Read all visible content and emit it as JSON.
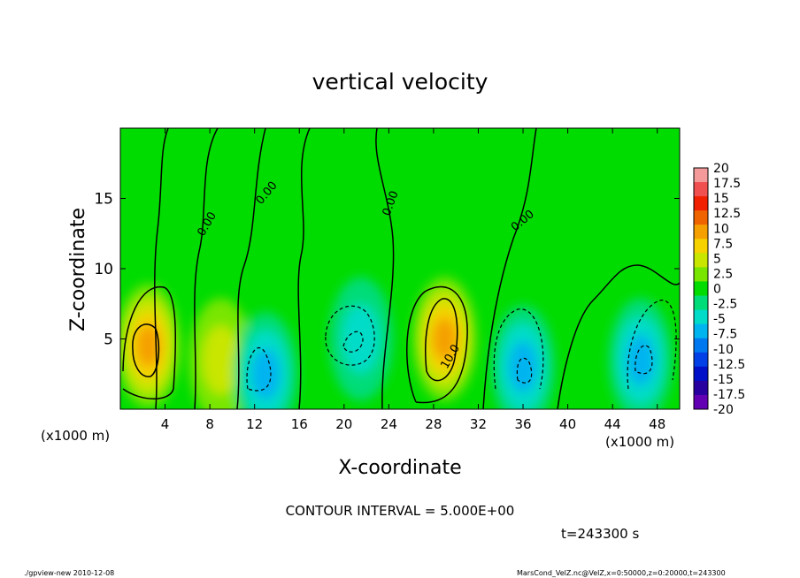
{
  "chart_data": {
    "type": "heatmap",
    "title": "vertical velocity",
    "xlabel": "X-coordinate",
    "ylabel": "Z-coordinate",
    "x_unit_left": "(x1000 m)",
    "x_unit_right": "(x1000 m)",
    "xlim": [
      0,
      50
    ],
    "ylim": [
      0,
      20
    ],
    "x_ticks": [
      "4",
      "8",
      "12",
      "16",
      "20",
      "24",
      "28",
      "32",
      "36",
      "40",
      "44",
      "48"
    ],
    "y_ticks": [
      "5",
      "10",
      "15"
    ],
    "colorbar_labels": [
      "20",
      "17.5",
      "15",
      "12.5",
      "10",
      "7.5",
      "5",
      "2.5",
      "0",
      "-2.5",
      "-5",
      "-7.5",
      "-10",
      "-12.5",
      "-15",
      "-17.5",
      "-20"
    ],
    "colorbar_colors": [
      "#f59a9a",
      "#f05050",
      "#f02000",
      "#f06400",
      "#f5a000",
      "#f5d200",
      "#c8e600",
      "#78e600",
      "#00dc00",
      "#00dc78",
      "#00dcc8",
      "#00b4f0",
      "#0078f0",
      "#0040e6",
      "#0010c8",
      "#2800a0",
      "#6400b4"
    ],
    "contour_interval": "CONTOUR INTERVAL = 5.000E+00",
    "contour_labels": [
      "0.00",
      "0.00",
      "0.00",
      "10.0",
      "0.00"
    ],
    "time": "t=243300 s",
    "features": [
      {
        "x": 2.5,
        "z": 4.5,
        "w": 10
      },
      {
        "x": 9,
        "z": 3.5,
        "w": 6
      },
      {
        "x": 13,
        "z": 2.5,
        "w": -7
      },
      {
        "x": 21.5,
        "z": 5,
        "w": -6
      },
      {
        "x": 29,
        "z": 5,
        "w": 11
      },
      {
        "x": 36,
        "z": 3,
        "w": -7
      },
      {
        "x": 46.5,
        "z": 3.5,
        "w": -8
      }
    ],
    "footer_left": "./gpview-new   2010-12-08",
    "footer_right": "MarsCond_VelZ.nc@VelZ,x=0:50000,z=0:20000,t=243300"
  }
}
